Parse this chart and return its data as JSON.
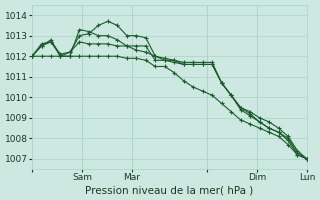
{
  "background_color": "#cce8e0",
  "grid_color": "#b0d4cc",
  "line_color": "#1a5c2a",
  "xlabel": "Pression niveau de la mer( hPa )",
  "ylim": [
    1006.5,
    1014.5
  ],
  "yticks": [
    1007,
    1008,
    1009,
    1010,
    1011,
    1012,
    1013,
    1014
  ],
  "x_tick_positions": [
    0.0,
    0.182,
    0.364,
    0.636,
    0.818,
    1.0
  ],
  "x_tick_labels": [
    "",
    "Sam",
    "Mar",
    "",
    "Dim",
    "Lun"
  ],
  "series": [
    [
      1012.0,
      1012.6,
      1012.7,
      1012.0,
      1012.2,
      1013.0,
      1013.1,
      1013.5,
      1013.7,
      1013.5,
      1013.0,
      1013.0,
      1012.9,
      1012.0,
      1011.9,
      1011.8,
      1011.6,
      1011.6,
      1011.6,
      1011.6,
      1010.7,
      1010.1,
      1009.5,
      1009.2,
      1008.8,
      1008.5,
      1008.3,
      1008.0,
      1007.3,
      1007.0
    ],
    [
      1012.0,
      1012.5,
      1012.8,
      1012.0,
      1012.0,
      1013.3,
      1013.2,
      1013.0,
      1013.0,
      1012.8,
      1012.5,
      1012.3,
      1012.2,
      1012.0,
      1011.8,
      1011.8,
      1011.7,
      1011.7,
      1011.7,
      1011.7,
      1010.7,
      1010.1,
      1009.4,
      1009.1,
      1008.8,
      1008.5,
      1008.3,
      1007.9,
      1007.2,
      1007.0
    ],
    [
      1012.0,
      1012.0,
      1012.0,
      1012.0,
      1012.0,
      1012.0,
      1012.0,
      1012.0,
      1012.0,
      1012.0,
      1011.9,
      1011.9,
      1011.8,
      1011.5,
      1011.5,
      1011.2,
      1010.8,
      1010.5,
      1010.3,
      1010.1,
      1009.7,
      1009.3,
      1008.9,
      1008.7,
      1008.5,
      1008.3,
      1008.1,
      1007.7,
      1007.2,
      1007.0
    ],
    [
      1012.0,
      1012.5,
      1012.7,
      1012.1,
      1012.2,
      1012.7,
      1012.6,
      1012.6,
      1012.6,
      1012.5,
      1012.5,
      1012.5,
      1012.5,
      1011.8,
      1011.8,
      1011.7,
      1011.6,
      1011.6,
      1011.6,
      1011.6,
      1010.7,
      1010.1,
      1009.5,
      1009.3,
      1009.0,
      1008.8,
      1008.5,
      1008.1,
      1007.4,
      1007.0
    ]
  ],
  "n_points": 30,
  "figsize": [
    3.2,
    2.0
  ],
  "dpi": 100,
  "label_fontsize": 6.5,
  "xlabel_fontsize": 7.5
}
